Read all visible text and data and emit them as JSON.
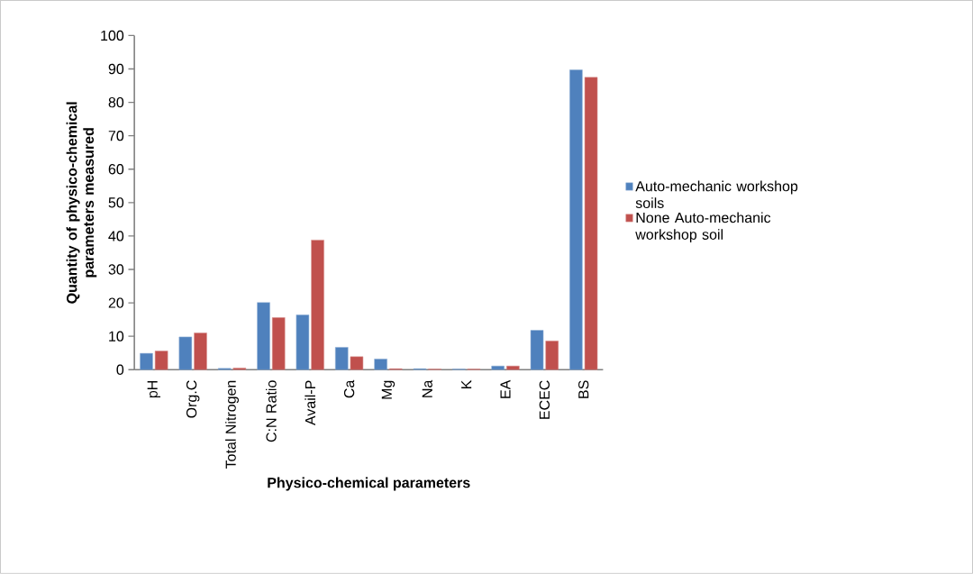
{
  "chart_data": {
    "type": "bar",
    "xlabel": "Physico-chemical parameters",
    "ylabel": "Quantity of physico-chemical parameters measured",
    "categories": [
      "pH",
      "Org.C",
      "Total Nitrogen",
      "C:N Ratio",
      "Avail-P",
      "Ca",
      "Mg",
      "Na",
      "K",
      "EA",
      "ECEC",
      "BS"
    ],
    "series": [
      {
        "name": "Auto-mechanic workshop soils",
        "color": "#4f81bd",
        "values": [
          4.9,
          9.8,
          0.4,
          20.1,
          16.4,
          6.7,
          3.2,
          0.3,
          0.2,
          1.1,
          11.8,
          89.7
        ]
      },
      {
        "name": "None Auto-mechanic workshop soil",
        "color": "#c0504d",
        "values": [
          5.6,
          11.0,
          0.5,
          15.6,
          38.8,
          3.9,
          0.3,
          0.2,
          0.2,
          1.1,
          8.6,
          87.5
        ]
      }
    ],
    "ylim": [
      0,
      100
    ],
    "yticks": [
      0,
      10,
      20,
      30,
      40,
      50,
      60,
      70,
      80,
      90,
      100
    ],
    "grid": false,
    "legend": "right"
  }
}
